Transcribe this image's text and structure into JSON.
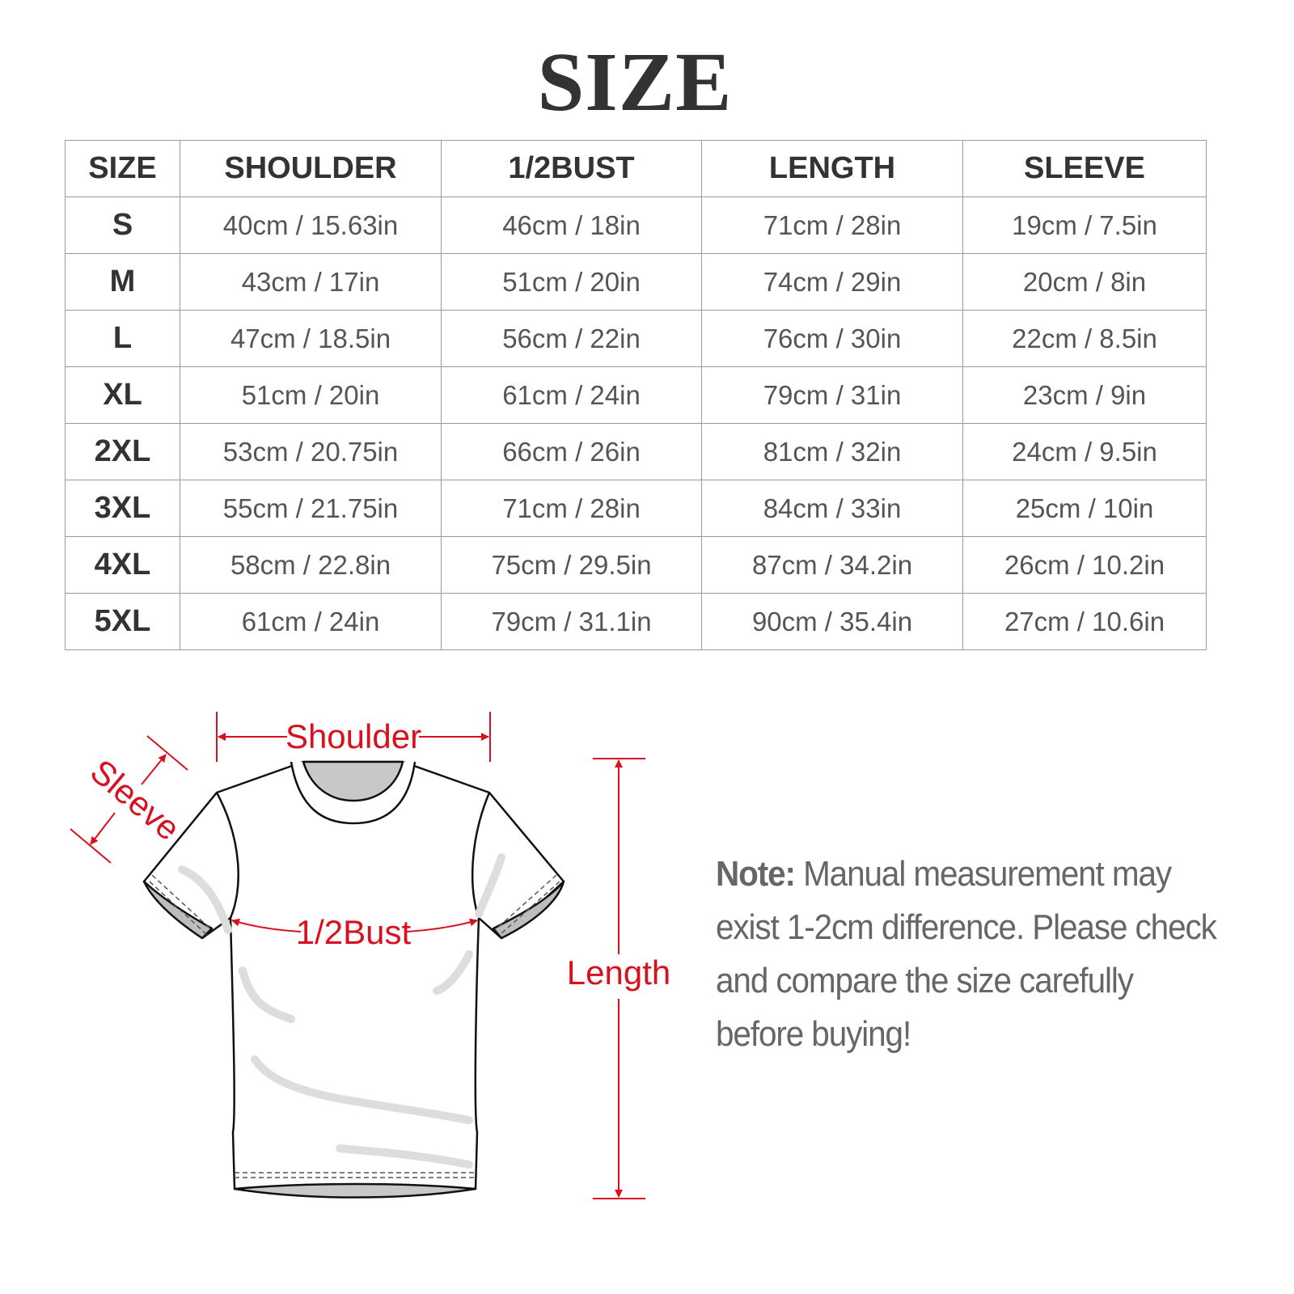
{
  "title": "SIZE",
  "table": {
    "headers": [
      "SIZE",
      "SHOULDER",
      "1/2BUST",
      "LENGTH",
      "SLEEVE"
    ],
    "rows": [
      [
        "S",
        "40cm / 15.63in",
        "46cm / 18in",
        "71cm / 28in",
        "19cm / 7.5in"
      ],
      [
        "M",
        "43cm / 17in",
        "51cm / 20in",
        "74cm / 29in",
        "20cm / 8in"
      ],
      [
        "L",
        "47cm / 18.5in",
        "56cm / 22in",
        "76cm / 30in",
        "22cm / 8.5in"
      ],
      [
        "XL",
        "51cm / 20in",
        "61cm / 24in",
        "79cm / 31in",
        "23cm / 9in"
      ],
      [
        "2XL",
        "53cm / 20.75in",
        "66cm / 26in",
        "81cm / 32in",
        "24cm / 9.5in"
      ],
      [
        "3XL",
        "55cm / 21.75in",
        "71cm / 28in",
        "84cm / 33in",
        "25cm / 10in"
      ],
      [
        "4XL",
        "58cm / 22.8in",
        "75cm / 29.5in",
        "87cm / 34.2in",
        "26cm / 10.2in"
      ],
      [
        "5XL",
        "61cm / 24in",
        "79cm / 31.1in",
        "90cm / 35.4in",
        "27cm / 10.6in"
      ]
    ]
  },
  "diagram": {
    "shoulder_label": "Shoulder",
    "sleeve_label": "Sleeve",
    "bust_label": "1/2Bust",
    "length_label": "Length",
    "annotation_color": "#d9101e"
  },
  "note": {
    "label": "Note:",
    "text": " Manual measurement may exist 1-2cm difference. Please check and compare the size carefully before buying!"
  }
}
